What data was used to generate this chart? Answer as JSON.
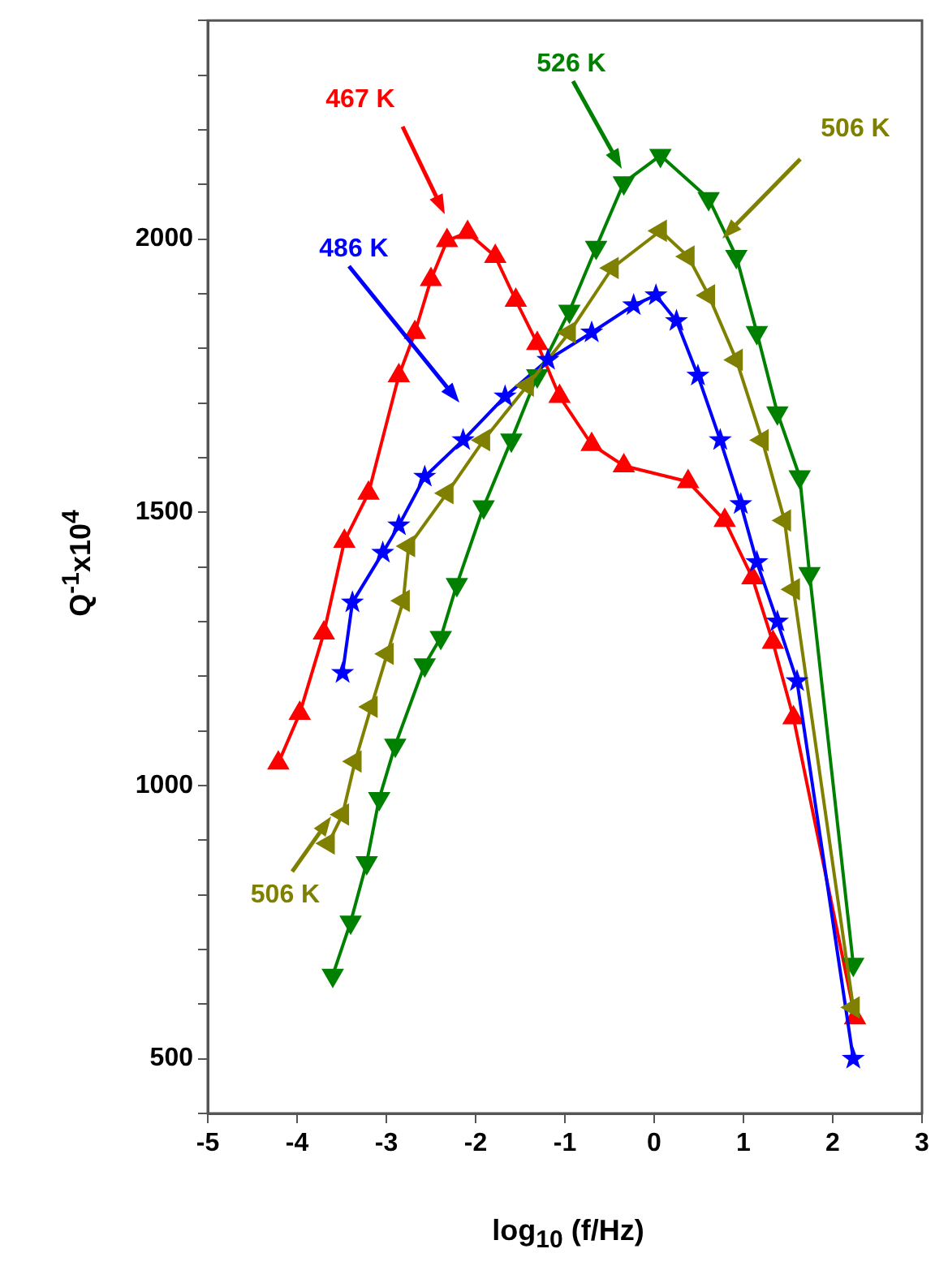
{
  "chart_data": {
    "type": "line",
    "xlabel": "log$_{10}$ (f/Hz)",
    "ylabel": "Q$^{-1}$x10$^{4}$",
    "xlim": [
      -5,
      3
    ],
    "xticks": [
      -5,
      -4,
      -3,
      -2,
      -1,
      0,
      1,
      2,
      3
    ],
    "ylim": [
      400,
      2400
    ],
    "yticks": [
      {
        "value": 400,
        "label": null
      },
      {
        "value": 500,
        "label": "500"
      },
      {
        "value": 600,
        "label": null
      },
      {
        "value": 700,
        "label": null
      },
      {
        "value": 800,
        "label": null
      },
      {
        "value": 900,
        "label": null
      },
      {
        "value": 1000,
        "label": "1000"
      },
      {
        "value": 1100,
        "label": null
      },
      {
        "value": 1200,
        "label": null
      },
      {
        "value": 1300,
        "label": null
      },
      {
        "value": 1400,
        "label": null
      },
      {
        "value": 1500,
        "label": "1500"
      },
      {
        "value": 1600,
        "label": null
      },
      {
        "value": 1700,
        "label": null
      },
      {
        "value": 1800,
        "label": null
      },
      {
        "value": 1900,
        "label": null
      },
      {
        "value": 2000,
        "label": "2000"
      },
      {
        "value": 2100,
        "label": null
      },
      {
        "value": 2200,
        "label": null
      },
      {
        "value": 2300,
        "label": null
      },
      {
        "value": 2400,
        "label": null
      }
    ],
    "annotations": [
      {
        "text": "506 K",
        "x": -3.55,
        "y": 960
      }
    ],
    "grid": false,
    "legend": false,
    "line_style": "solid",
    "series": [
      {
        "name": "467 K",
        "color": "#ff0000",
        "marker": "triangle",
        "x": [
          -4.21,
          -3.97,
          -3.7,
          -3.47,
          -3.2,
          -2.86,
          -2.68,
          -2.5,
          -2.32,
          -2.09,
          -1.78,
          -1.55,
          -1.31,
          -1.06,
          -0.7,
          -0.34,
          0.38,
          0.79,
          1.1,
          1.33,
          1.56,
          2.25
        ],
        "values": [
          1041,
          1132,
          1279,
          1447,
          1535,
          1750,
          1829,
          1926,
          1997,
          2012,
          1968,
          1888,
          1809,
          1712,
          1624,
          1585,
          1556,
          1485,
          1380,
          1262,
          1124,
          575
        ]
      },
      {
        "name": "486 K",
        "color": "#0000ff",
        "marker": "star",
        "x": [
          -3.49,
          -3.38,
          -3.04,
          -2.86,
          -2.57,
          -2.14,
          -1.67,
          -1.19,
          -0.7,
          -0.23,
          0.02,
          0.25,
          0.49,
          0.74,
          0.97,
          1.15,
          1.38,
          1.6,
          2.23
        ],
        "values": [
          1206,
          1335,
          1426,
          1476,
          1565,
          1632,
          1712,
          1779,
          1829,
          1879,
          1897,
          1850,
          1750,
          1632,
          1515,
          1409,
          1300,
          1191,
          500
        ]
      },
      {
        "name": "506 K",
        "color": "#808000",
        "marker": "triangle",
        "x": [
          -3.65,
          -3.49,
          -3.35,
          -3.17,
          -2.99,
          -2.81,
          -2.75,
          -2.32,
          -1.91,
          -1.42,
          -0.95,
          -0.47,
          0.07,
          0.38,
          0.61,
          0.92,
          1.21,
          1.46,
          1.56,
          2.23
        ],
        "values": [
          894,
          947,
          1044,
          1144,
          1241,
          1338,
          1438,
          1535,
          1632,
          1732,
          1829,
          1947,
          2015,
          1968,
          1897,
          1779,
          1632,
          1485,
          1359,
          594
        ]
      },
      {
        "name": "526 K",
        "color": "#008000",
        "marker": "triangle",
        "x": [
          -3.6,
          -3.4,
          -3.22,
          -3.08,
          -2.9,
          -2.57,
          -2.39,
          -2.21,
          -1.91,
          -1.6,
          -1.31,
          -0.95,
          -0.65,
          -0.34,
          0.07,
          0.61,
          0.92,
          1.15,
          1.38,
          1.63,
          1.74,
          2.23
        ],
        "values": [
          653,
          750,
          859,
          976,
          1074,
          1221,
          1271,
          1368,
          1510,
          1632,
          1750,
          1868,
          1985,
          2103,
          2153,
          2074,
          1968,
          1829,
          1682,
          1565,
          1388,
          673
        ]
      }
    ]
  }
}
